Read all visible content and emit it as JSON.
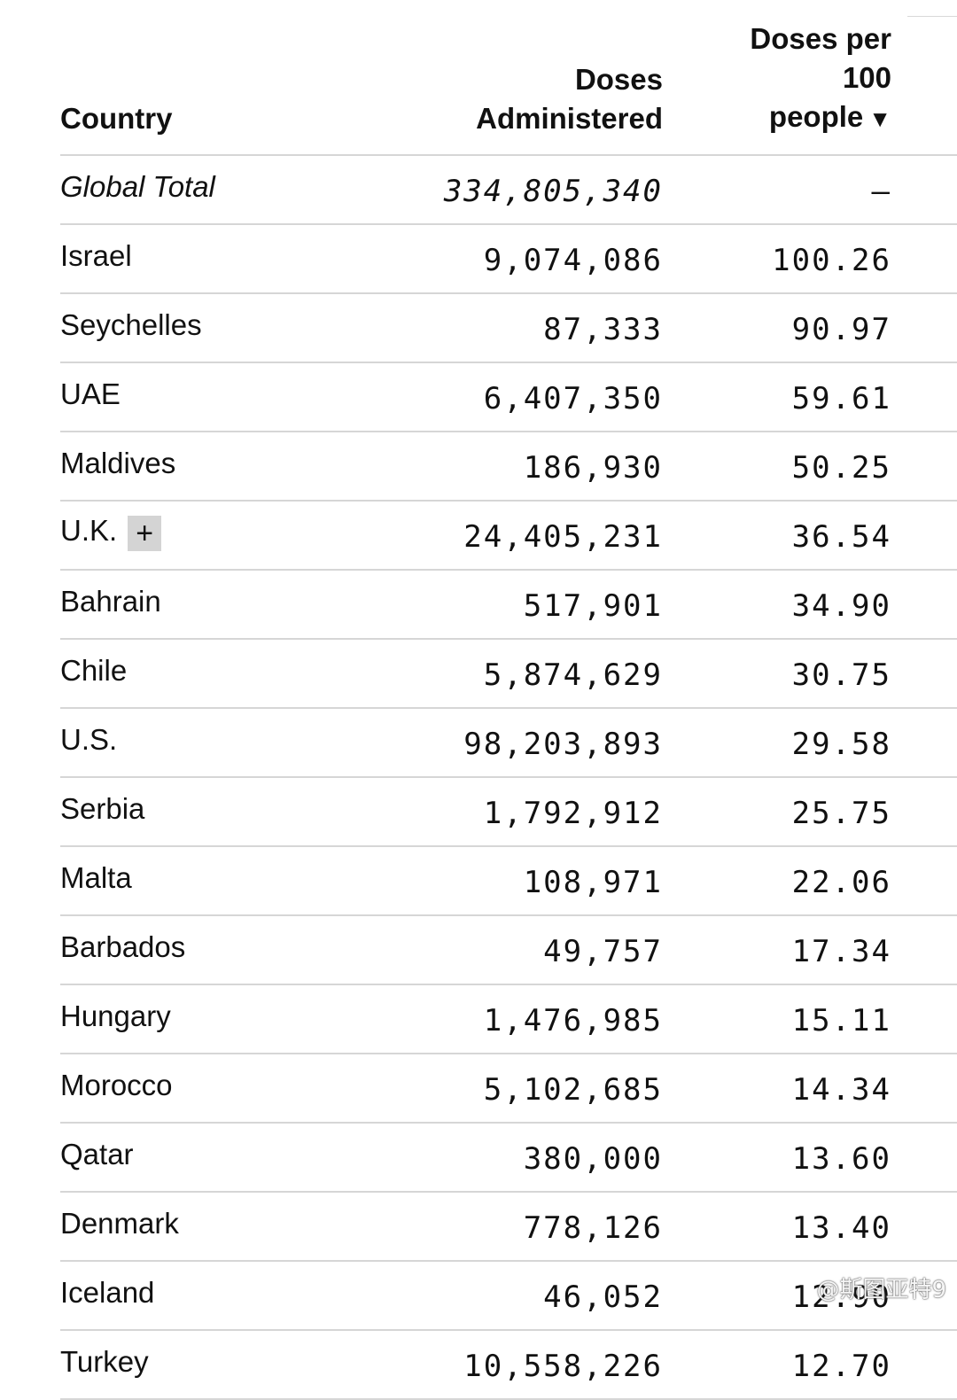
{
  "table": {
    "headers": {
      "country": "Country",
      "doses_line1": "Doses",
      "doses_line2": "Administered",
      "per_line1": "Doses per",
      "per_line2": "100",
      "per_line3": "people",
      "sort_indicator": "▼"
    },
    "expand_label": "+",
    "rows": [
      {
        "country": "Global Total",
        "doses": "334,805,340",
        "per100": "–"
      },
      {
        "country": "Israel",
        "doses": "9,074,086",
        "per100": "100.26"
      },
      {
        "country": "Seychelles",
        "doses": "87,333",
        "per100": "90.97"
      },
      {
        "country": "UAE",
        "doses": "6,407,350",
        "per100": "59.61"
      },
      {
        "country": "Maldives",
        "doses": "186,930",
        "per100": "50.25"
      },
      {
        "country": "U.K.",
        "doses": "24,405,231",
        "per100": "36.54"
      },
      {
        "country": "Bahrain",
        "doses": "517,901",
        "per100": "34.90"
      },
      {
        "country": "Chile",
        "doses": "5,874,629",
        "per100": "30.75"
      },
      {
        "country": "U.S.",
        "doses": "98,203,893",
        "per100": "29.58"
      },
      {
        "country": "Serbia",
        "doses": "1,792,912",
        "per100": "25.75"
      },
      {
        "country": "Malta",
        "doses": "108,971",
        "per100": "22.06"
      },
      {
        "country": "Barbados",
        "doses": "49,757",
        "per100": "17.34"
      },
      {
        "country": "Hungary",
        "doses": "1,476,985",
        "per100": "15.11"
      },
      {
        "country": "Morocco",
        "doses": "5,102,685",
        "per100": "14.34"
      },
      {
        "country": "Qatar",
        "doses": "380,000",
        "per100": "13.60"
      },
      {
        "country": "Denmark",
        "doses": "778,126",
        "per100": "13.40"
      },
      {
        "country": "Iceland",
        "doses": "46,052",
        "per100": "12.90"
      },
      {
        "country": "Turkey",
        "doses": "10,558,226",
        "per100": "12.70"
      }
    ]
  },
  "watermark": "@斯图亚特9",
  "colors": {
    "text": "#111111",
    "row_divider": "#d6d6d6",
    "expand_button_bg": "#d4d4d4"
  }
}
